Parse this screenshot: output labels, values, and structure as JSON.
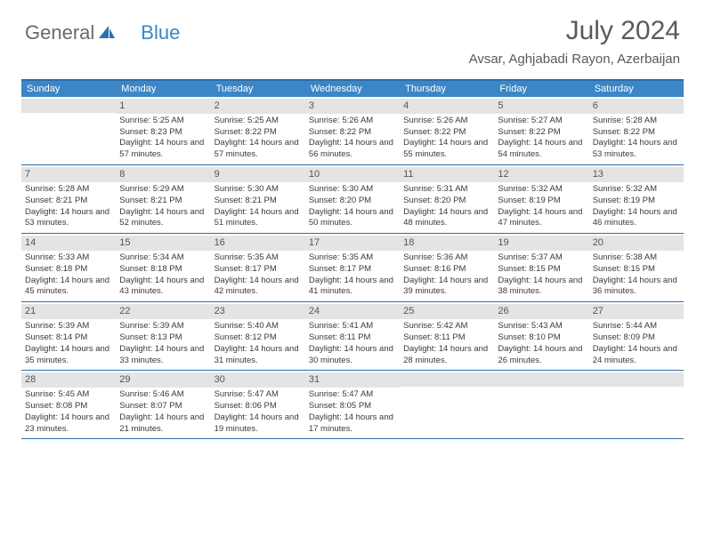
{
  "brand": {
    "part1": "General",
    "part2": "Blue"
  },
  "title": "July 2024",
  "location": "Avsar, Aghjabadi Rayon, Azerbaijan",
  "colors": {
    "header_bar": "#3b86c6",
    "rule": "#2e6ca8",
    "daynum_bg": "#e4e4e4",
    "text": "#3a3a3a",
    "title_text": "#5a5a5a"
  },
  "day_names": [
    "Sunday",
    "Monday",
    "Tuesday",
    "Wednesday",
    "Thursday",
    "Friday",
    "Saturday"
  ],
  "weeks": [
    [
      {
        "num": "",
        "sunrise": "",
        "sunset": "",
        "daylight": ""
      },
      {
        "num": "1",
        "sunrise": "Sunrise: 5:25 AM",
        "sunset": "Sunset: 8:23 PM",
        "daylight": "Daylight: 14 hours and 57 minutes."
      },
      {
        "num": "2",
        "sunrise": "Sunrise: 5:25 AM",
        "sunset": "Sunset: 8:22 PM",
        "daylight": "Daylight: 14 hours and 57 minutes."
      },
      {
        "num": "3",
        "sunrise": "Sunrise: 5:26 AM",
        "sunset": "Sunset: 8:22 PM",
        "daylight": "Daylight: 14 hours and 56 minutes."
      },
      {
        "num": "4",
        "sunrise": "Sunrise: 5:26 AM",
        "sunset": "Sunset: 8:22 PM",
        "daylight": "Daylight: 14 hours and 55 minutes."
      },
      {
        "num": "5",
        "sunrise": "Sunrise: 5:27 AM",
        "sunset": "Sunset: 8:22 PM",
        "daylight": "Daylight: 14 hours and 54 minutes."
      },
      {
        "num": "6",
        "sunrise": "Sunrise: 5:28 AM",
        "sunset": "Sunset: 8:22 PM",
        "daylight": "Daylight: 14 hours and 53 minutes."
      }
    ],
    [
      {
        "num": "7",
        "sunrise": "Sunrise: 5:28 AM",
        "sunset": "Sunset: 8:21 PM",
        "daylight": "Daylight: 14 hours and 53 minutes."
      },
      {
        "num": "8",
        "sunrise": "Sunrise: 5:29 AM",
        "sunset": "Sunset: 8:21 PM",
        "daylight": "Daylight: 14 hours and 52 minutes."
      },
      {
        "num": "9",
        "sunrise": "Sunrise: 5:30 AM",
        "sunset": "Sunset: 8:21 PM",
        "daylight": "Daylight: 14 hours and 51 minutes."
      },
      {
        "num": "10",
        "sunrise": "Sunrise: 5:30 AM",
        "sunset": "Sunset: 8:20 PM",
        "daylight": "Daylight: 14 hours and 50 minutes."
      },
      {
        "num": "11",
        "sunrise": "Sunrise: 5:31 AM",
        "sunset": "Sunset: 8:20 PM",
        "daylight": "Daylight: 14 hours and 48 minutes."
      },
      {
        "num": "12",
        "sunrise": "Sunrise: 5:32 AM",
        "sunset": "Sunset: 8:19 PM",
        "daylight": "Daylight: 14 hours and 47 minutes."
      },
      {
        "num": "13",
        "sunrise": "Sunrise: 5:32 AM",
        "sunset": "Sunset: 8:19 PM",
        "daylight": "Daylight: 14 hours and 46 minutes."
      }
    ],
    [
      {
        "num": "14",
        "sunrise": "Sunrise: 5:33 AM",
        "sunset": "Sunset: 8:18 PM",
        "daylight": "Daylight: 14 hours and 45 minutes."
      },
      {
        "num": "15",
        "sunrise": "Sunrise: 5:34 AM",
        "sunset": "Sunset: 8:18 PM",
        "daylight": "Daylight: 14 hours and 43 minutes."
      },
      {
        "num": "16",
        "sunrise": "Sunrise: 5:35 AM",
        "sunset": "Sunset: 8:17 PM",
        "daylight": "Daylight: 14 hours and 42 minutes."
      },
      {
        "num": "17",
        "sunrise": "Sunrise: 5:35 AM",
        "sunset": "Sunset: 8:17 PM",
        "daylight": "Daylight: 14 hours and 41 minutes."
      },
      {
        "num": "18",
        "sunrise": "Sunrise: 5:36 AM",
        "sunset": "Sunset: 8:16 PM",
        "daylight": "Daylight: 14 hours and 39 minutes."
      },
      {
        "num": "19",
        "sunrise": "Sunrise: 5:37 AM",
        "sunset": "Sunset: 8:15 PM",
        "daylight": "Daylight: 14 hours and 38 minutes."
      },
      {
        "num": "20",
        "sunrise": "Sunrise: 5:38 AM",
        "sunset": "Sunset: 8:15 PM",
        "daylight": "Daylight: 14 hours and 36 minutes."
      }
    ],
    [
      {
        "num": "21",
        "sunrise": "Sunrise: 5:39 AM",
        "sunset": "Sunset: 8:14 PM",
        "daylight": "Daylight: 14 hours and 35 minutes."
      },
      {
        "num": "22",
        "sunrise": "Sunrise: 5:39 AM",
        "sunset": "Sunset: 8:13 PM",
        "daylight": "Daylight: 14 hours and 33 minutes."
      },
      {
        "num": "23",
        "sunrise": "Sunrise: 5:40 AM",
        "sunset": "Sunset: 8:12 PM",
        "daylight": "Daylight: 14 hours and 31 minutes."
      },
      {
        "num": "24",
        "sunrise": "Sunrise: 5:41 AM",
        "sunset": "Sunset: 8:11 PM",
        "daylight": "Daylight: 14 hours and 30 minutes."
      },
      {
        "num": "25",
        "sunrise": "Sunrise: 5:42 AM",
        "sunset": "Sunset: 8:11 PM",
        "daylight": "Daylight: 14 hours and 28 minutes."
      },
      {
        "num": "26",
        "sunrise": "Sunrise: 5:43 AM",
        "sunset": "Sunset: 8:10 PM",
        "daylight": "Daylight: 14 hours and 26 minutes."
      },
      {
        "num": "27",
        "sunrise": "Sunrise: 5:44 AM",
        "sunset": "Sunset: 8:09 PM",
        "daylight": "Daylight: 14 hours and 24 minutes."
      }
    ],
    [
      {
        "num": "28",
        "sunrise": "Sunrise: 5:45 AM",
        "sunset": "Sunset: 8:08 PM",
        "daylight": "Daylight: 14 hours and 23 minutes."
      },
      {
        "num": "29",
        "sunrise": "Sunrise: 5:46 AM",
        "sunset": "Sunset: 8:07 PM",
        "daylight": "Daylight: 14 hours and 21 minutes."
      },
      {
        "num": "30",
        "sunrise": "Sunrise: 5:47 AM",
        "sunset": "Sunset: 8:06 PM",
        "daylight": "Daylight: 14 hours and 19 minutes."
      },
      {
        "num": "31",
        "sunrise": "Sunrise: 5:47 AM",
        "sunset": "Sunset: 8:05 PM",
        "daylight": "Daylight: 14 hours and 17 minutes."
      },
      {
        "num": "",
        "sunrise": "",
        "sunset": "",
        "daylight": ""
      },
      {
        "num": "",
        "sunrise": "",
        "sunset": "",
        "daylight": ""
      },
      {
        "num": "",
        "sunrise": "",
        "sunset": "",
        "daylight": ""
      }
    ]
  ]
}
